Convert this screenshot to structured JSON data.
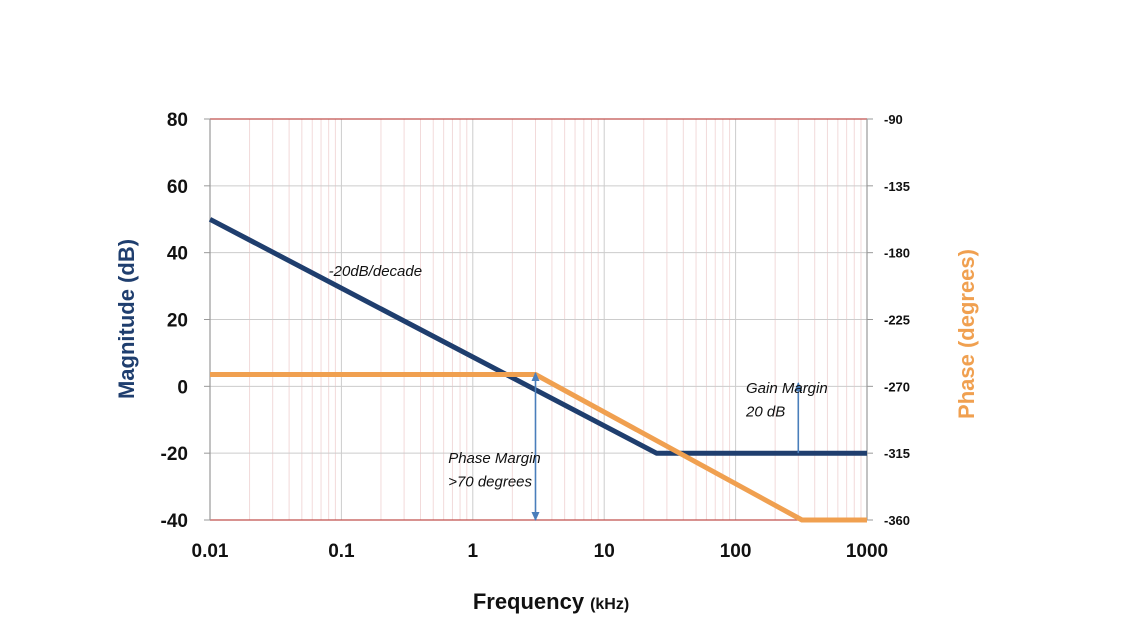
{
  "chart_data": {
    "type": "line",
    "xscale": "log",
    "xlim": [
      0.01,
      1000
    ],
    "xticks": [
      "0.01",
      "0.1",
      "1",
      "10",
      "100",
      "1000"
    ],
    "xlabel": "Frequency",
    "xlabel_unit": "(kHz)",
    "ylabel_left": "Magnitude (dB)",
    "ylim_left": [
      -40,
      80
    ],
    "yticks_left": [
      "80",
      "60",
      "40",
      "20",
      "0",
      "-20",
      "-40"
    ],
    "ylabel_right": "Phase (degrees)",
    "ylim_right": [
      -360,
      -90
    ],
    "yticks_right": [
      "-90",
      "-135",
      "-180",
      "-225",
      "-270",
      "-315",
      "-360"
    ],
    "grid": true,
    "series": [
      {
        "axis": "left",
        "color": "#1f3e6e",
        "points": [
          [
            0.01,
            50
          ],
          [
            25,
            -20
          ],
          [
            1000,
            -20
          ]
        ]
      },
      {
        "axis": "right",
        "color": "#f0a050",
        "points": [
          [
            0.01,
            -262
          ],
          [
            3,
            -262
          ],
          [
            320,
            -360
          ],
          [
            1000,
            -360
          ]
        ]
      }
    ],
    "annotations": [
      {
        "text": "-20dB/decade",
        "x": 0.08,
        "y": 33
      },
      {
        "text": "Gain Margin",
        "x": 120,
        "y": -2
      },
      {
        "text": "20 dB",
        "x": 120,
        "y": -9
      },
      {
        "text": "Phase Margin",
        "x": 0.65,
        "y": -23
      },
      {
        "text": ">70 degrees",
        "x": 0.65,
        "y": -30
      }
    ],
    "arrows": [
      {
        "name": "phase-margin-arrow",
        "x": 3,
        "y_from": -40,
        "y_to": 4,
        "double": true
      },
      {
        "name": "gain-margin-arrow",
        "x": 300,
        "y_from": -20,
        "y_to": 1,
        "double": false
      }
    ],
    "colors": {
      "magnitude": "#1f3e6e",
      "phase": "#f0a050",
      "grid_major": "#cccccc",
      "grid_minor": "#f2dada",
      "limit_lines": "#c0504d",
      "arrow": "#4a7ebb"
    }
  }
}
